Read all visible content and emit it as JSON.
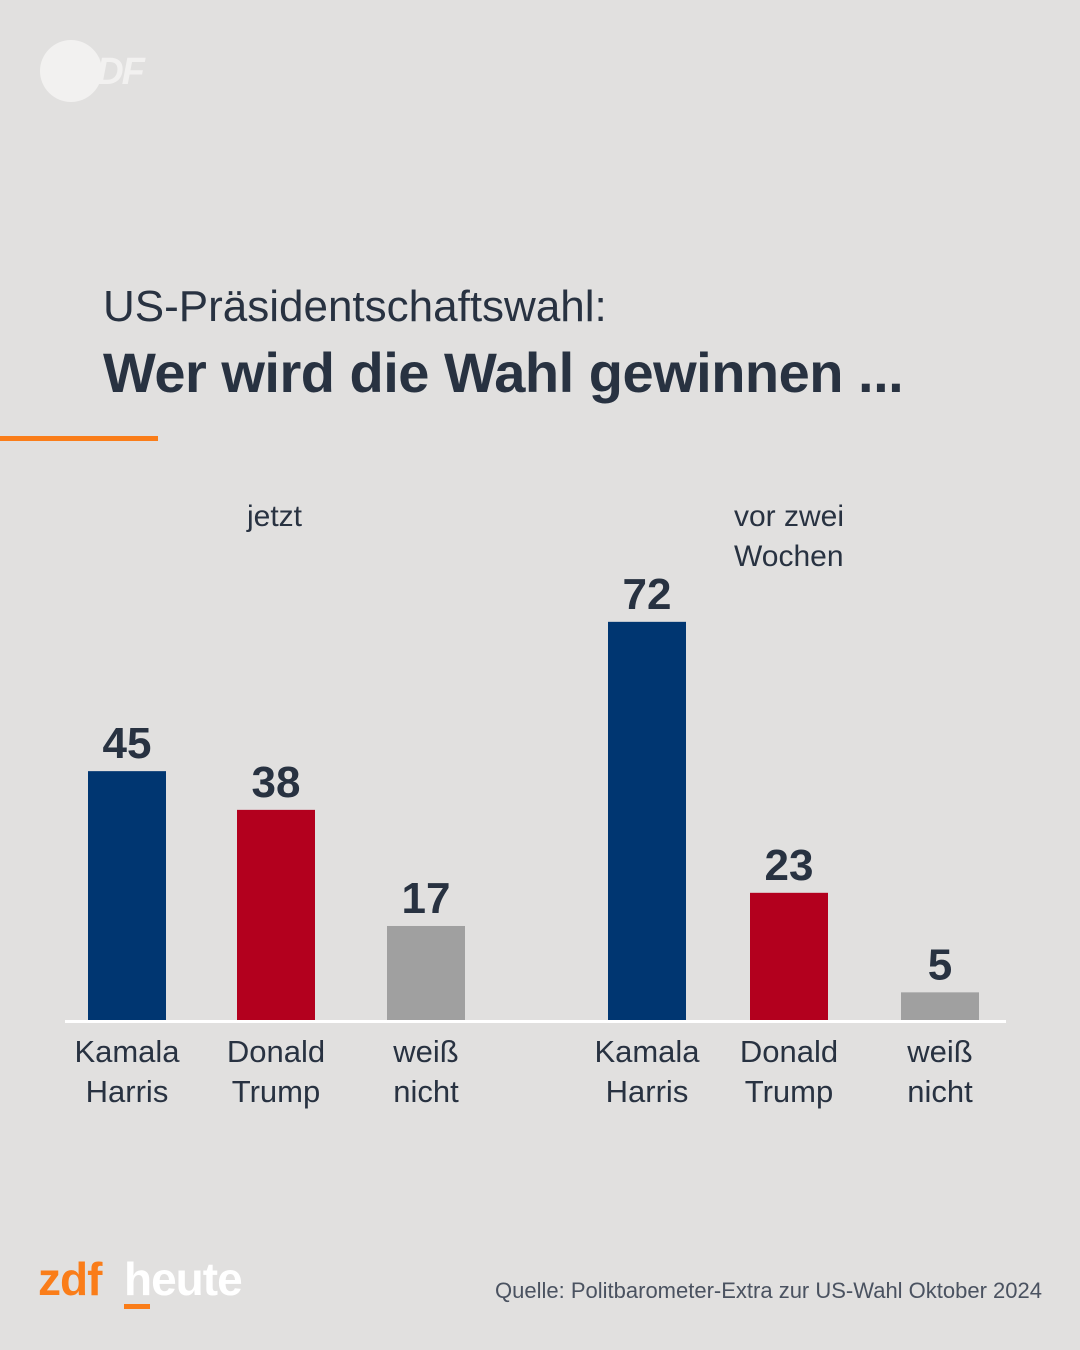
{
  "brand": {
    "top_logo": "ZDF",
    "footer_logo_part1": "zdf",
    "footer_logo_part2": "heute"
  },
  "subtitle": "US-Präsidentschaftswahl:",
  "headline": "Wer wird die Wahl gewinnen ...",
  "colors": {
    "background": "#e1e0df",
    "accent": "#fa7d19",
    "harris": "#003671",
    "trump": "#b3001e",
    "unknown": "#a0a0a0",
    "text": "#283241"
  },
  "chart_data": [
    {
      "type": "bar",
      "title": "jetzt",
      "categories": [
        "Kamala Harris",
        "Donald Trump",
        "weiß nicht"
      ],
      "category_lines": [
        [
          "Kamala",
          "Harris"
        ],
        [
          "Donald",
          "Trump"
        ],
        [
          "weiß",
          "nicht"
        ]
      ],
      "values": [
        45,
        38,
        17
      ],
      "colors": [
        "#003671",
        "#b3001e",
        "#a0a0a0"
      ]
    },
    {
      "type": "bar",
      "title": "vor zwei Wochen",
      "title_lines": [
        "vor zwei",
        "Wochen"
      ],
      "categories": [
        "Kamala Harris",
        "Donald Trump",
        "weiß nicht"
      ],
      "category_lines": [
        [
          "Kamala",
          "Harris"
        ],
        [
          "Donald",
          "Trump"
        ],
        [
          "weiß",
          "nicht"
        ]
      ],
      "values": [
        72,
        23,
        5
      ],
      "colors": [
        "#003671",
        "#b3001e",
        "#a0a0a0"
      ]
    }
  ],
  "source": "Quelle: Politbarometer-Extra zur US-Wahl Oktober 2024"
}
